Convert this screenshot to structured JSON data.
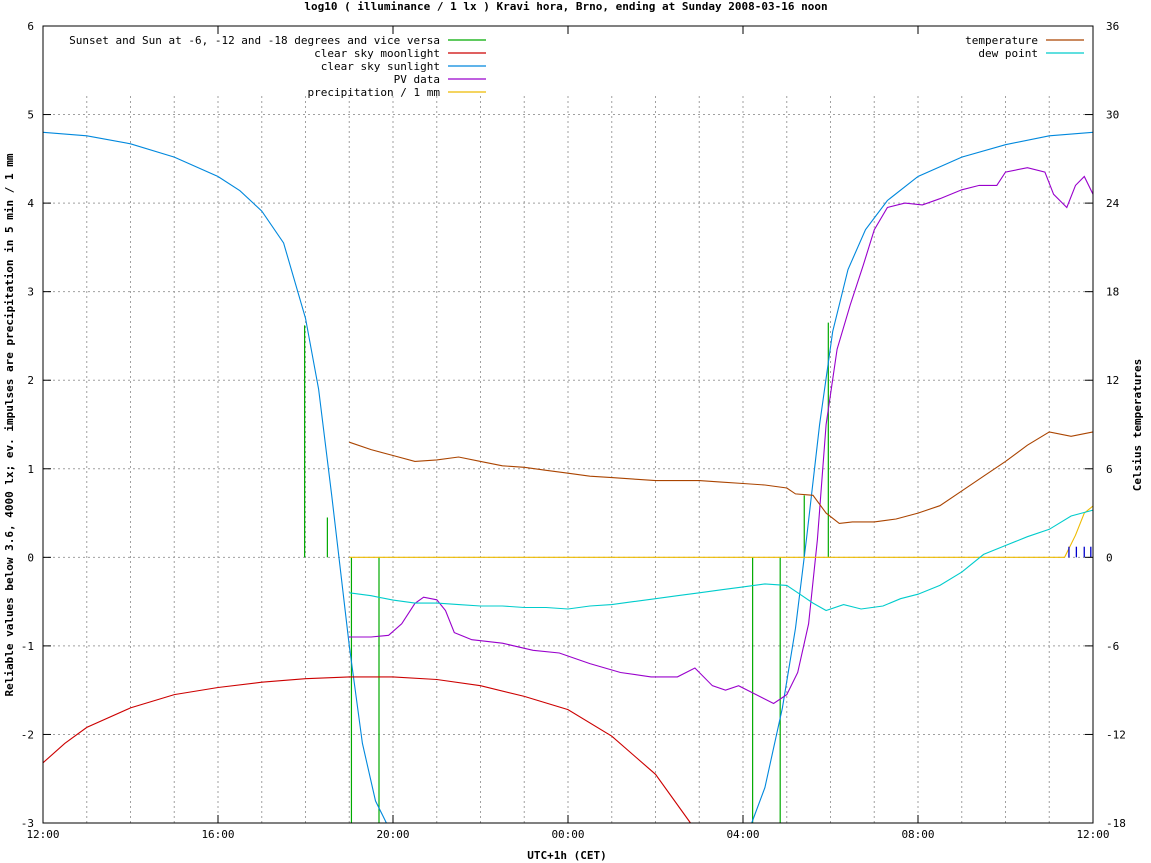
{
  "chart_data": {
    "type": "line",
    "title": "log10 ( illuminance / 1 lx ) Kravi hora, Brno, ending at Sunday 2008-03-16 noon",
    "xlabel": "UTC+1h (CET)",
    "ylabel": "Reliable values below 3.6, 4000 lx; ev. impulses are precipitation in 5 min / 1 mm",
    "y2label": "Celsius temperatures",
    "x_unit": "hours since 12:00 (CET)",
    "xlim": [
      0,
      24
    ],
    "ylim": [
      -3,
      6
    ],
    "y2lim": [
      -18,
      36
    ],
    "x_ticks": [
      {
        "x": 0,
        "label": "12:00"
      },
      {
        "x": 4,
        "label": "16:00"
      },
      {
        "x": 8,
        "label": "20:00"
      },
      {
        "x": 12,
        "label": "00:00"
      },
      {
        "x": 16,
        "label": "04:00"
      },
      {
        "x": 20,
        "label": "08:00"
      },
      {
        "x": 24,
        "label": "12:00"
      }
    ],
    "y_ticks": [
      "-3",
      "-2",
      "-1",
      "0",
      "1",
      "2",
      "3",
      "4",
      "5",
      "6"
    ],
    "y2_ticks": [
      "-18",
      "-12",
      "-6",
      "0",
      "6",
      "12",
      "18",
      "24",
      "30",
      "36"
    ],
    "grid": true,
    "legend_left": [
      {
        "name": "Sunset and Sun at -6, -12 and -18 degrees and vice versa",
        "color": "#00aa00"
      },
      {
        "name": "clear sky moonlight",
        "color": "#cc0000"
      },
      {
        "name": "clear sky sunlight",
        "color": "#0088dd"
      },
      {
        "name": "PV data",
        "color": "#9900cc"
      },
      {
        "name": "precipitation / 1 mm",
        "color": "#eebb00"
      }
    ],
    "legend_right": [
      {
        "name": "temperature",
        "color": "#aa4400"
      },
      {
        "name": "dew point",
        "color": "#00cccc"
      }
    ],
    "twilight_markers": [
      {
        "x": 5.98,
        "y_top": 2.62
      },
      {
        "x": 6.5,
        "y_top": 0.45
      },
      {
        "x": 7.05,
        "y_top": -3
      },
      {
        "x": 7.68,
        "y_top": -3
      },
      {
        "x": 16.22,
        "y_top": -3
      },
      {
        "x": 16.85,
        "y_top": -3
      },
      {
        "x": 17.4,
        "y_top": 0.7
      },
      {
        "x": 17.95,
        "y_top": 2.65
      }
    ],
    "series": [
      {
        "name": "clear sky sunlight",
        "axis": "y",
        "color": "#0088dd",
        "points": [
          [
            0,
            4.8
          ],
          [
            1,
            4.76
          ],
          [
            2,
            4.67
          ],
          [
            3,
            4.52
          ],
          [
            4,
            4.3
          ],
          [
            4.5,
            4.14
          ],
          [
            5,
            3.91
          ],
          [
            5.5,
            3.55
          ],
          [
            6,
            2.7
          ],
          [
            6.3,
            1.9
          ],
          [
            6.6,
            0.7
          ],
          [
            7,
            -1.0
          ],
          [
            7.3,
            -2.1
          ],
          [
            7.6,
            -2.75
          ],
          [
            7.85,
            -3.0
          ]
        ]
      },
      {
        "name": "clear sky sunlight (morning)",
        "axis": "y",
        "color": "#0088dd",
        "points": [
          [
            16.2,
            -3.0
          ],
          [
            16.5,
            -2.6
          ],
          [
            16.9,
            -1.7
          ],
          [
            17.2,
            -0.8
          ],
          [
            17.45,
            0.2
          ],
          [
            17.75,
            1.5
          ],
          [
            18.05,
            2.55
          ],
          [
            18.4,
            3.25
          ],
          [
            18.8,
            3.7
          ],
          [
            19.3,
            4.03
          ],
          [
            20,
            4.3
          ],
          [
            21,
            4.52
          ],
          [
            22,
            4.66
          ],
          [
            23,
            4.76
          ],
          [
            24,
            4.8
          ]
        ]
      },
      {
        "name": "clear sky moonlight",
        "axis": "y",
        "color": "#cc0000",
        "points": [
          [
            0,
            -2.32
          ],
          [
            0.5,
            -2.1
          ],
          [
            1,
            -1.92
          ],
          [
            2,
            -1.7
          ],
          [
            3,
            -1.55
          ],
          [
            4,
            -1.47
          ],
          [
            5,
            -1.41
          ],
          [
            6,
            -1.37
          ],
          [
            7,
            -1.35
          ],
          [
            8,
            -1.35
          ],
          [
            9,
            -1.38
          ],
          [
            10,
            -1.45
          ],
          [
            11,
            -1.57
          ],
          [
            12,
            -1.72
          ],
          [
            13,
            -2.02
          ],
          [
            14,
            -2.45
          ],
          [
            14.8,
            -3.0
          ]
        ]
      },
      {
        "name": "PV data",
        "axis": "y",
        "color": "#9900cc",
        "points": [
          [
            7,
            -0.9
          ],
          [
            7.5,
            -0.9
          ],
          [
            7.9,
            -0.88
          ],
          [
            8.2,
            -0.75
          ],
          [
            8.5,
            -0.52
          ],
          [
            8.7,
            -0.45
          ],
          [
            9,
            -0.48
          ],
          [
            9.2,
            -0.6
          ],
          [
            9.4,
            -0.85
          ],
          [
            9.8,
            -0.93
          ],
          [
            10.5,
            -0.97
          ],
          [
            11.2,
            -1.05
          ],
          [
            11.8,
            -1.08
          ],
          [
            12.5,
            -1.2
          ],
          [
            13.2,
            -1.3
          ],
          [
            13.9,
            -1.35
          ],
          [
            14.5,
            -1.35
          ],
          [
            14.9,
            -1.25
          ],
          [
            15.3,
            -1.45
          ],
          [
            15.6,
            -1.5
          ],
          [
            15.9,
            -1.45
          ],
          [
            16.3,
            -1.55
          ],
          [
            16.7,
            -1.65
          ],
          [
            17,
            -1.55
          ],
          [
            17.25,
            -1.3
          ],
          [
            17.5,
            -0.75
          ],
          [
            17.7,
            0.2
          ],
          [
            17.9,
            1.5
          ],
          [
            18.15,
            2.35
          ],
          [
            18.45,
            2.85
          ],
          [
            18.75,
            3.3
          ],
          [
            19,
            3.7
          ],
          [
            19.3,
            3.95
          ],
          [
            19.7,
            4.0
          ],
          [
            20.1,
            3.98
          ],
          [
            20.5,
            4.05
          ],
          [
            21,
            4.15
          ],
          [
            21.4,
            4.2
          ],
          [
            21.8,
            4.2
          ],
          [
            22,
            4.35
          ],
          [
            22.5,
            4.4
          ],
          [
            22.9,
            4.35
          ],
          [
            23.1,
            4.1
          ],
          [
            23.4,
            3.95
          ],
          [
            23.6,
            4.2
          ],
          [
            23.8,
            4.3
          ],
          [
            24,
            4.1
          ]
        ]
      },
      {
        "name": "precipitation / 1 mm",
        "axis": "y",
        "color": "#eebb00",
        "points": [
          [
            7,
            0
          ],
          [
            23.35,
            0
          ],
          [
            23.6,
            0.25
          ],
          [
            23.8,
            0.5
          ],
          [
            24,
            0.58
          ]
        ]
      },
      {
        "name": "temperature",
        "axis": "y2",
        "color": "#aa4400",
        "points": [
          [
            7,
            7.8
          ],
          [
            7.5,
            7.3
          ],
          [
            8,
            6.9
          ],
          [
            8.5,
            6.5
          ],
          [
            9,
            6.6
          ],
          [
            9.5,
            6.8
          ],
          [
            10,
            6.5
          ],
          [
            10.5,
            6.2
          ],
          [
            11,
            6.1
          ],
          [
            11.5,
            5.9
          ],
          [
            12,
            5.7
          ],
          [
            12.5,
            5.5
          ],
          [
            13,
            5.4
          ],
          [
            13.5,
            5.3
          ],
          [
            14,
            5.2
          ],
          [
            14.5,
            5.2
          ],
          [
            15,
            5.2
          ],
          [
            15.5,
            5.1
          ],
          [
            16,
            5.0
          ],
          [
            16.5,
            4.9
          ],
          [
            17,
            4.7
          ],
          [
            17.2,
            4.3
          ],
          [
            17.6,
            4.2
          ],
          [
            17.9,
            3.0
          ],
          [
            18.2,
            2.3
          ],
          [
            18.5,
            2.4
          ],
          [
            19,
            2.4
          ],
          [
            19.5,
            2.6
          ],
          [
            20,
            3.0
          ],
          [
            20.5,
            3.5
          ],
          [
            21,
            4.5
          ],
          [
            21.5,
            5.5
          ],
          [
            22,
            6.5
          ],
          [
            22.5,
            7.6
          ],
          [
            23,
            8.5
          ],
          [
            23.5,
            8.2
          ],
          [
            24,
            8.5
          ]
        ]
      },
      {
        "name": "dew point",
        "axis": "y2",
        "color": "#00cccc",
        "points": [
          [
            7,
            -2.4
          ],
          [
            7.5,
            -2.6
          ],
          [
            8,
            -2.9
          ],
          [
            8.5,
            -3.1
          ],
          [
            9,
            -3.1
          ],
          [
            9.5,
            -3.2
          ],
          [
            10,
            -3.3
          ],
          [
            10.5,
            -3.3
          ],
          [
            11,
            -3.4
          ],
          [
            11.5,
            -3.4
          ],
          [
            12,
            -3.5
          ],
          [
            12.5,
            -3.3
          ],
          [
            13,
            -3.2
          ],
          [
            13.5,
            -3.0
          ],
          [
            14,
            -2.8
          ],
          [
            14.5,
            -2.6
          ],
          [
            15,
            -2.4
          ],
          [
            15.5,
            -2.2
          ],
          [
            16,
            -2.0
          ],
          [
            16.5,
            -1.8
          ],
          [
            17,
            -1.9
          ],
          [
            17.3,
            -2.5
          ],
          [
            17.6,
            -3.1
          ],
          [
            17.9,
            -3.6
          ],
          [
            18.3,
            -3.2
          ],
          [
            18.7,
            -3.5
          ],
          [
            19.2,
            -3.3
          ],
          [
            19.6,
            -2.8
          ],
          [
            20,
            -2.5
          ],
          [
            20.5,
            -1.9
          ],
          [
            21,
            -1.0
          ],
          [
            21.5,
            0.2
          ],
          [
            22,
            0.8
          ],
          [
            22.5,
            1.4
          ],
          [
            23,
            1.9
          ],
          [
            23.5,
            2.8
          ],
          [
            24,
            3.2
          ]
        ]
      }
    ],
    "precip_impulses": [
      23.45,
      23.62,
      23.8,
      23.95
    ]
  }
}
